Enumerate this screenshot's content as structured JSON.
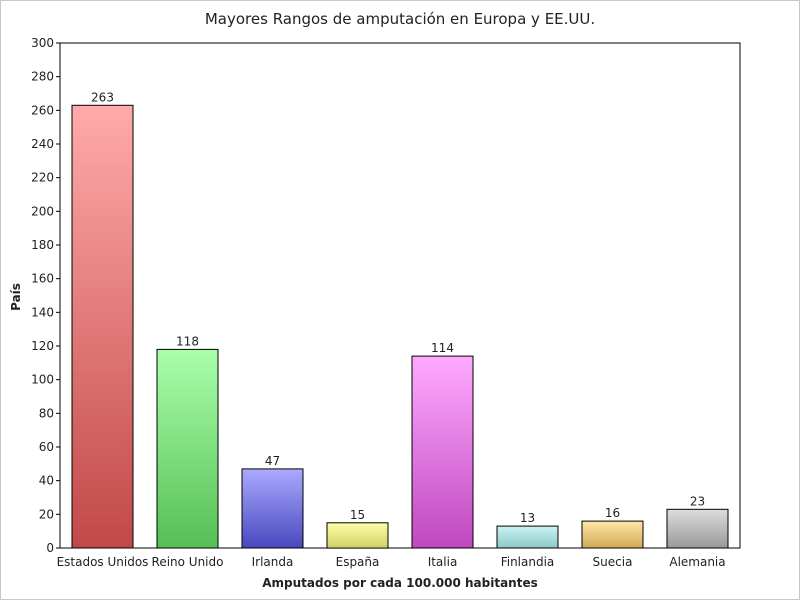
{
  "chart_data": {
    "type": "bar",
    "title": "Mayores Rangos de amputación en Europa y EE.UU.",
    "xlabel": "Amputados por cada 100.000 habitantes",
    "ylabel": "País",
    "ylim": [
      0,
      300
    ],
    "yticks": [
      0,
      20,
      40,
      60,
      80,
      100,
      120,
      140,
      160,
      180,
      200,
      220,
      240,
      260,
      280,
      300
    ],
    "categories": [
      "Estados Unidos",
      "Reino Unido",
      "Irlanda",
      "España",
      "Italia",
      "Finlandia",
      "Suecia",
      "Alemania"
    ],
    "values": [
      263,
      118,
      47,
      15,
      114,
      13,
      16,
      23
    ],
    "data_labels": [
      "263",
      "118",
      "47",
      "15",
      "114",
      "13",
      "16",
      "23"
    ],
    "grid": false,
    "legend": "none",
    "bar_colors": [
      {
        "top": "#ffaaaa",
        "bottom": "#c24848"
      },
      {
        "top": "#aaffaa",
        "bottom": "#55bf55"
      },
      {
        "top": "#aaaaff",
        "bottom": "#4848bf"
      },
      {
        "top": "#ffffaa",
        "bottom": "#cfcf66"
      },
      {
        "top": "#ffaaff",
        "bottom": "#bf48bf"
      },
      {
        "top": "#ccf2f2",
        "bottom": "#8cc8c8"
      },
      {
        "top": "#ffe6aa",
        "bottom": "#d2a955"
      },
      {
        "top": "#dddddd",
        "bottom": "#999999"
      }
    ]
  }
}
